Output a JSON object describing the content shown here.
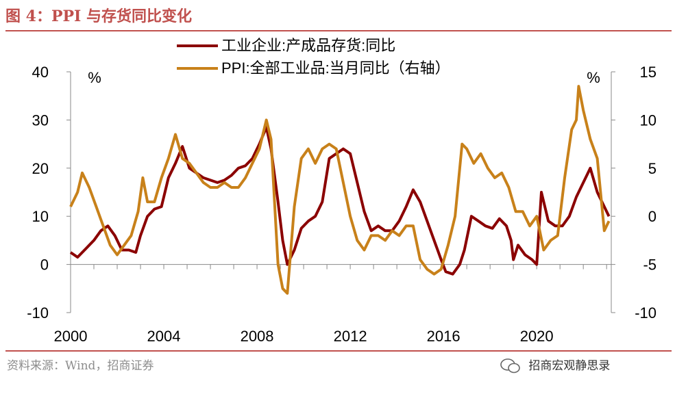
{
  "figure": {
    "title": "图 4：PPI 与存货同比变化",
    "source": "资料来源：Wind，招商证券",
    "watermark": "招商宏观静思录"
  },
  "chart_data": {
    "type": "line",
    "y_left": {
      "unit_label": "%",
      "ylim": [
        -10,
        40
      ],
      "ticks": [
        -10,
        0,
        10,
        20,
        30,
        40
      ]
    },
    "y_right": {
      "unit_label": "%",
      "ylim": [
        -10,
        15
      ],
      "ticks": [
        -10,
        -5,
        0,
        5,
        10,
        15
      ]
    },
    "x_ticks": [
      "2000",
      "2004",
      "2008",
      "2012",
      "2016",
      "2020"
    ],
    "xlim": [
      2000.0,
      2023.2
    ],
    "legend": "top-center",
    "grid": false,
    "series": [
      {
        "name": "工业企业:产成品存货:同比",
        "axis": "left",
        "color": "#8b0000",
        "x": [
          2000.0,
          2000.3,
          2000.7,
          2001.0,
          2001.3,
          2001.6,
          2001.9,
          2002.2,
          2002.5,
          2002.8,
          2003.0,
          2003.3,
          2003.6,
          2003.9,
          2004.2,
          2004.5,
          2004.8,
          2005.1,
          2005.4,
          2005.7,
          2006.0,
          2006.3,
          2006.6,
          2006.9,
          2007.2,
          2007.5,
          2007.8,
          2008.1,
          2008.4,
          2008.6,
          2008.9,
          2009.1,
          2009.3,
          2009.6,
          2009.9,
          2010.2,
          2010.5,
          2010.8,
          2011.1,
          2011.4,
          2011.7,
          2012.0,
          2012.3,
          2012.6,
          2012.9,
          2013.2,
          2013.5,
          2013.8,
          2014.1,
          2014.4,
          2014.7,
          2015.0,
          2015.3,
          2015.6,
          2015.9,
          2016.1,
          2016.4,
          2016.7,
          2016.9,
          2017.2,
          2017.5,
          2017.8,
          2018.1,
          2018.4,
          2018.7,
          2018.9,
          2019.0,
          2019.2,
          2019.5,
          2019.8,
          2020.0,
          2020.2,
          2020.5,
          2020.8,
          2021.1,
          2021.4,
          2021.7,
          2022.0,
          2022.3,
          2022.6,
          2022.9,
          2023.1
        ],
        "y": [
          2.5,
          1.5,
          3.5,
          5.0,
          7.0,
          8.0,
          6.0,
          3.0,
          3.0,
          2.5,
          6.0,
          10.0,
          11.5,
          12.0,
          18.0,
          21.0,
          24.5,
          20.0,
          19.0,
          18.0,
          17.5,
          17.0,
          17.5,
          18.5,
          20.0,
          20.5,
          22.0,
          25.0,
          28.5,
          24.0,
          13.0,
          5.0,
          0.0,
          3.0,
          7.5,
          9.0,
          10.0,
          13.0,
          22.0,
          23.0,
          24.0,
          23.0,
          17.0,
          11.0,
          7.0,
          8.0,
          7.0,
          7.0,
          9.0,
          12.0,
          15.5,
          13.0,
          9.0,
          5.0,
          1.0,
          -1.5,
          -2.0,
          0.0,
          3.0,
          10.0,
          9.0,
          8.0,
          7.5,
          9.5,
          8.0,
          5.0,
          1.0,
          4.0,
          2.0,
          1.0,
          0.0,
          15.0,
          9.0,
          8.0,
          8.0,
          10.0,
          14.0,
          17.0,
          20.0,
          15.0,
          12.0,
          10.0
        ]
      },
      {
        "name": "PPI:全部工业品:当月同比（右轴）",
        "axis": "right",
        "color": "#c8811a",
        "x": [
          2000.0,
          2000.3,
          2000.5,
          2000.8,
          2001.1,
          2001.4,
          2001.7,
          2002.0,
          2002.3,
          2002.6,
          2002.9,
          2003.1,
          2003.3,
          2003.6,
          2003.9,
          2004.2,
          2004.5,
          2004.8,
          2005.1,
          2005.4,
          2005.7,
          2006.0,
          2006.3,
          2006.6,
          2006.9,
          2007.2,
          2007.5,
          2007.8,
          2008.1,
          2008.4,
          2008.6,
          2008.9,
          2009.1,
          2009.3,
          2009.6,
          2009.9,
          2010.2,
          2010.5,
          2010.8,
          2011.1,
          2011.4,
          2011.7,
          2012.0,
          2012.3,
          2012.6,
          2012.9,
          2013.2,
          2013.5,
          2013.8,
          2014.1,
          2014.4,
          2014.7,
          2015.0,
          2015.3,
          2015.6,
          2015.9,
          2016.2,
          2016.5,
          2016.8,
          2017.0,
          2017.3,
          2017.6,
          2017.9,
          2018.2,
          2018.5,
          2018.8,
          2019.1,
          2019.4,
          2019.7,
          2020.0,
          2020.3,
          2020.6,
          2020.9,
          2021.2,
          2021.5,
          2021.7,
          2021.8,
          2022.0,
          2022.3,
          2022.6,
          2022.9,
          2023.1
        ],
        "y": [
          1.0,
          2.5,
          4.5,
          3.0,
          1.0,
          -1.0,
          -3.0,
          -4.0,
          -3.0,
          -2.0,
          0.5,
          4.0,
          1.5,
          1.5,
          4.0,
          6.0,
          8.5,
          6.0,
          5.5,
          4.5,
          3.5,
          3.0,
          3.0,
          3.5,
          3.0,
          3.0,
          4.0,
          5.5,
          7.0,
          10.0,
          8.0,
          -5.0,
          -7.5,
          -8.0,
          1.0,
          6.0,
          7.0,
          5.5,
          7.0,
          7.5,
          7.0,
          3.5,
          0.0,
          -2.5,
          -3.5,
          -2.0,
          -2.0,
          -2.5,
          -1.5,
          -2.0,
          -1.0,
          -1.0,
          -4.5,
          -5.5,
          -6.0,
          -5.5,
          -3.0,
          0.0,
          7.5,
          7.0,
          5.5,
          6.5,
          5.0,
          4.0,
          4.5,
          3.0,
          0.5,
          0.5,
          -1.0,
          0.0,
          -3.5,
          -2.5,
          -2.0,
          4.0,
          9.0,
          10.0,
          13.5,
          11.0,
          8.0,
          6.0,
          -1.5,
          -0.5
        ]
      }
    ]
  }
}
